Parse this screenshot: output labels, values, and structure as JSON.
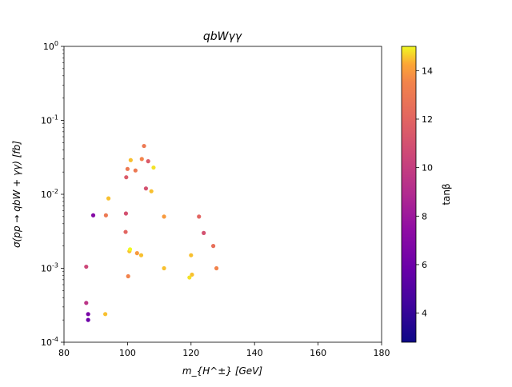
{
  "chart_data": {
    "type": "scatter",
    "title": "qbWγγ",
    "xlabel": "m_{H^±} [GeV]",
    "ylabel": "σ(pp → qbW + γγ) [fb]",
    "xlim": [
      80,
      180
    ],
    "ylim": [
      0.0001,
      1
    ],
    "yscale": "log",
    "x_ticks": [
      "80",
      "100",
      "120",
      "140",
      "160",
      "180"
    ],
    "y_ticks": [
      "10^-4",
      "10^-3",
      "10^-2",
      "10^-1",
      "10^0"
    ],
    "grid": false,
    "legend": "none",
    "colorbar": {
      "label": "tanβ",
      "range": [
        2.8,
        15
      ],
      "ticks": [
        "4",
        "6",
        "8",
        "10",
        "12",
        "14"
      ],
      "colormap": "plasma"
    },
    "series": [
      {
        "points": [
          [
            87.0,
            0.00105,
            10.5
          ],
          [
            87.0,
            0.00034,
            9.5
          ],
          [
            87.6,
            0.00024,
            6.5
          ],
          [
            87.6,
            0.0002,
            6.0
          ],
          [
            89.2,
            0.0052,
            7.0
          ],
          [
            93.0,
            0.00024,
            14.5
          ],
          [
            93.2,
            0.0052,
            13.0
          ],
          [
            94.0,
            0.0088,
            14.5
          ],
          [
            99.4,
            0.0031,
            12.0
          ],
          [
            99.5,
            0.0055,
            11.0
          ],
          [
            99.6,
            0.017,
            11.5
          ],
          [
            100.0,
            0.022,
            13.0
          ],
          [
            100.2,
            0.00078,
            13.5
          ],
          [
            100.6,
            0.0017,
            14.5
          ],
          [
            100.8,
            0.0018,
            15.0
          ],
          [
            101.0,
            0.029,
            14.5
          ],
          [
            102.5,
            0.021,
            13.0
          ],
          [
            103.0,
            0.0016,
            14.0
          ],
          [
            104.3,
            0.0015,
            14.5
          ],
          [
            104.5,
            0.03,
            13.5
          ],
          [
            105.2,
            0.045,
            13.0
          ],
          [
            105.8,
            0.012,
            11.0
          ],
          [
            106.5,
            0.028,
            11.5
          ],
          [
            107.5,
            0.011,
            14.5
          ],
          [
            108.2,
            0.023,
            14.8
          ],
          [
            111.5,
            0.005,
            14.0
          ],
          [
            111.5,
            0.001,
            14.5
          ],
          [
            120.0,
            0.0015,
            14.5
          ],
          [
            119.5,
            0.00075,
            14.8
          ],
          [
            120.3,
            0.00082,
            14.5
          ],
          [
            122.5,
            0.005,
            12.0
          ],
          [
            124.0,
            0.003,
            11.0
          ],
          [
            127.0,
            0.002,
            12.5
          ],
          [
            128.0,
            0.001,
            13.5
          ]
        ]
      }
    ]
  }
}
